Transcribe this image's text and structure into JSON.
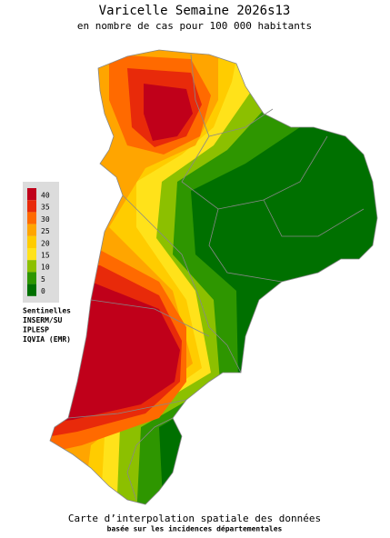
{
  "header": {
    "title": "Varicelle Semaine 2026s13",
    "subtitle": "en nombre de cas pour 100 000 habitants"
  },
  "legend": {
    "items": [
      {
        "label": "40",
        "color": "#c0001a"
      },
      {
        "label": "35",
        "color": "#e82a0a"
      },
      {
        "label": "30",
        "color": "#ff6a00"
      },
      {
        "label": "25",
        "color": "#ffa500"
      },
      {
        "label": "20",
        "color": "#ffcc00"
      },
      {
        "label": "15",
        "color": "#ffe21a"
      },
      {
        "label": "10",
        "color": "#8cc000"
      },
      {
        "label": "5",
        "color": "#2e9600"
      },
      {
        "label": "0",
        "color": "#007000"
      }
    ]
  },
  "sources": [
    "Sentinelles",
    "INSERM/SU",
    "IPLESP",
    "IQVIA (EMR)"
  ],
  "footer": {
    "title": "Carte d’interpolation spatiale des données",
    "subtitle": "basée sur les incidences départementales"
  }
}
